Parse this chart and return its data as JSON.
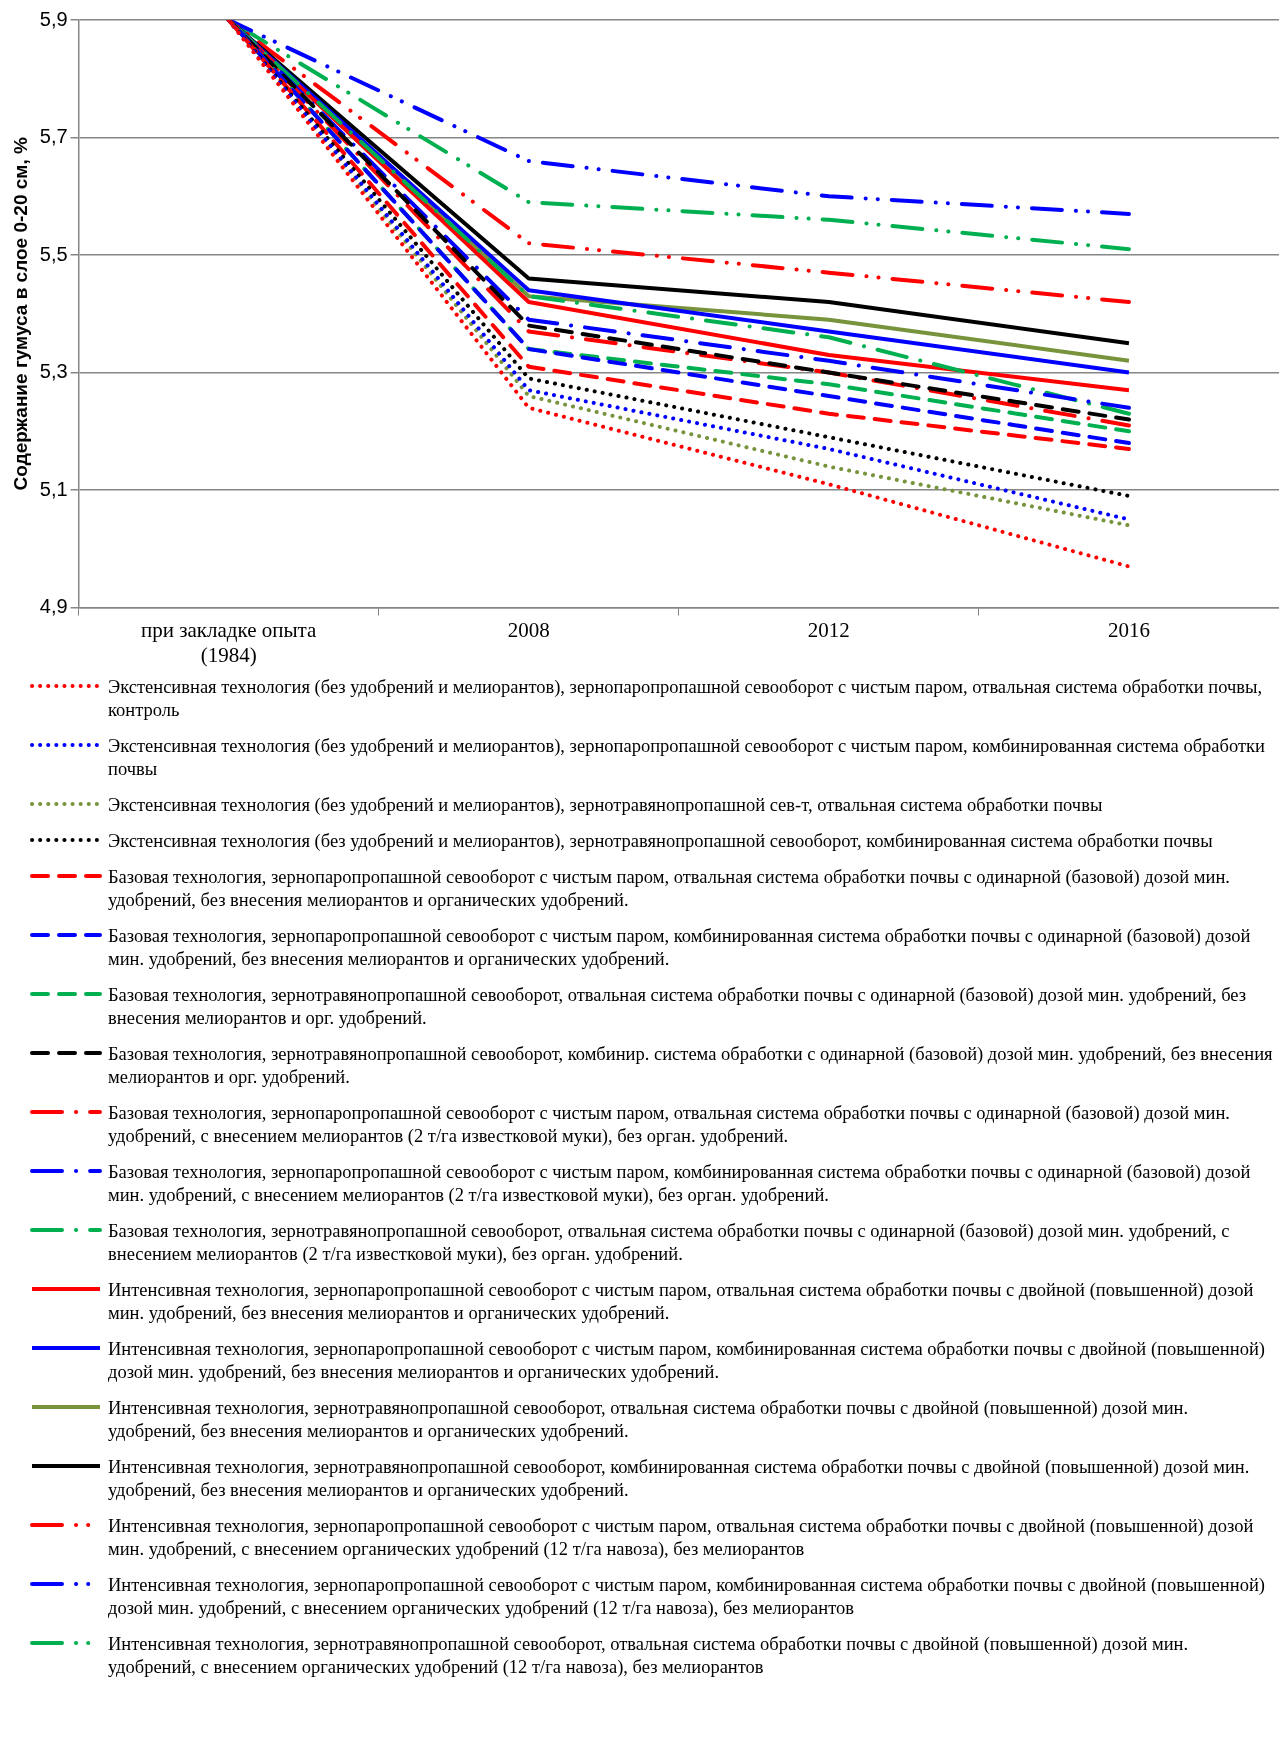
{
  "chart_data": {
    "type": "line",
    "ylabel": "Содержание гумуса в слое 0-20 см, %",
    "categories": [
      "при закладке опыта\n(1984)",
      "2008",
      "2012",
      "2016"
    ],
    "ylim": [
      4.9,
      5.9
    ],
    "yticks": [
      {
        "value": 4.9,
        "label": "4,9"
      },
      {
        "value": 5.1,
        "label": "5,1"
      },
      {
        "value": 5.3,
        "label": "5,3"
      },
      {
        "value": 5.5,
        "label": "5,5"
      },
      {
        "value": 5.7,
        "label": "5,7"
      },
      {
        "value": 5.9,
        "label": "5,9"
      }
    ],
    "grid": "y",
    "legend": "bottom",
    "marker": "none",
    "series": [
      {
        "name": "Экстенсивная технология (без удобрений и мелиорантов), зернопаропропашной севооборот с чистым паром, отвальная система обработки почвы, контроль",
        "color": "#ff0000",
        "line_style": "dotted",
        "values": [
          5.9,
          5.24,
          5.11,
          4.97
        ]
      },
      {
        "name": "Экстенсивная технология (без удобрений и мелиорантов), зернопаропропашной севооборот с чистым паром, комбинированная система обработки почвы",
        "color": "#0000ff",
        "line_style": "dotted",
        "values": [
          5.9,
          5.27,
          5.17,
          5.05
        ]
      },
      {
        "name": "Экстенсивная технология (без удобрений и мелиорантов), зернотравянопропашной сев-т, отвальная система обработки почвы",
        "color": "#77933c",
        "line_style": "dotted",
        "values": [
          5.9,
          5.26,
          5.14,
          5.04
        ]
      },
      {
        "name": "Экстенсивная технология (без удобрений и мелиорантов), зернотравянопропашной севооборот, комбинированная система обработки почвы",
        "color": "#000000",
        "line_style": "dotted",
        "values": [
          5.9,
          5.29,
          5.19,
          5.09
        ]
      },
      {
        "name": "Базовая технология, зернопаропропашной севооборот с чистым паром, отвальная система обработки почвы с одинарной (базовой) дозой мин. удобрений, без внесения мелиорантов и органических удобрений.",
        "color": "#ff0000",
        "line_style": "dashed",
        "values": [
          5.9,
          5.31,
          5.23,
          5.17
        ]
      },
      {
        "name": "Базовая технология, зернопаропропашной севооборот с чистым паром, комбинированная система обработки почвы с одинарной (базовой) дозой мин. удобрений, без внесения мелиорантов и органических удобрений.",
        "color": "#0000ff",
        "line_style": "dashed",
        "values": [
          5.9,
          5.34,
          5.26,
          5.18
        ]
      },
      {
        "name": "Базовая технология, зернотравянопропашной севооборот, отвальная система обработки почвы с одинарной (базовой) дозой мин. удобрений, без внесения мелиорантов и орг. удобрений.",
        "color": "#00b050",
        "line_style": "dashed",
        "values": [
          5.9,
          5.34,
          5.28,
          5.2
        ]
      },
      {
        "name": "Базовая технология, зернотравянопропашной севооборот, комбинир. система обработки с одинарной (базовой) дозой мин. удобрений, без внесения мелиорантов и орг. удобрений.",
        "color": "#000000",
        "line_style": "dashed",
        "values": [
          5.9,
          5.38,
          5.3,
          5.22
        ]
      },
      {
        "name": "Базовая технология, зернопаропропашной севооборот с чистым паром, отвальная система обработки почвы с одинарной (базовой) дозой мин. удобрений, с внесением мелиорантов (2 т/га известковой муки), без орган. удобрений.",
        "color": "#ff0000",
        "line_style": "dashdot",
        "values": [
          5.9,
          5.37,
          5.3,
          5.21
        ]
      },
      {
        "name": "Базовая технология, зернопаропропашной севооборот с чистым паром, комбинированная система обработки почвы с одинарной (базовой) дозой мин. удобрений, с внесением мелиорантов (2 т/га известковой муки), без орган. удобрений.",
        "color": "#0000ff",
        "line_style": "dashdot",
        "values": [
          5.9,
          5.39,
          5.32,
          5.24
        ]
      },
      {
        "name": "Базовая технология, зернотравянопропашной севооборот, отвальная система обработки почвы с одинарной (базовой) дозой мин. удобрений, с внесением мелиорантов (2 т/га известковой муки), без орган. удобрений.",
        "color": "#00b050",
        "line_style": "dashdot",
        "values": [
          5.9,
          5.43,
          5.36,
          5.23
        ]
      },
      {
        "name": "Интенсивная технология, зернопаропропашной севооборот с чистым паром, отвальная система обработки почвы с двойной (повышенной) дозой мин. удобрений,  без внесения мелиорантов и органических удобрений.",
        "color": "#ff0000",
        "line_style": "solid",
        "values": [
          5.9,
          5.42,
          5.33,
          5.27
        ]
      },
      {
        "name": "Интенсивная технология, зернопаропропашной севооборот с чистым паром, комбинированная система обработки почвы с двойной (повышенной) дозой мин. удобрений,  без внесения мелиорантов и органических удобрений.",
        "color": "#0000ff",
        "line_style": "solid",
        "values": [
          5.9,
          5.44,
          5.37,
          5.3
        ]
      },
      {
        "name": "Интенсивная технология, зернотравянопропашной севооборот, отвальная система обработки почвы с двойной (повышенной) дозой мин. удобрений,  без внесения мелиорантов и органических удобрений.",
        "color": "#77933c",
        "line_style": "solid",
        "values": [
          5.9,
          5.43,
          5.39,
          5.32
        ]
      },
      {
        "name": "Интенсивная технология, зернотравянопропашной севооборот, комбинированная система обработки почвы с двойной (повышенной) дозой мин. удобрений,  без внесения мелиорантов и органических удобрений.",
        "color": "#000000",
        "line_style": "solid",
        "values": [
          5.9,
          5.46,
          5.42,
          5.35
        ]
      },
      {
        "name": "Интенсивная технология, зернопаропропашной севооборот с чистым паром, отвальная система обработки почвы с двойной (повышенной) дозой мин. удобрений, с внесением органических удобрений (12 т/га навоза), без мелиорантов",
        "color": "#ff0000",
        "line_style": "dashdotdot",
        "values": [
          5.9,
          5.52,
          5.47,
          5.42
        ]
      },
      {
        "name": "Интенсивная технология, зернопаропропашной севооборот с чистым паром, комбинированная система обработки почвы с двойной (повышенной) дозой мин. удобрений, с внесением органических удобрений (12 т/га навоза), без мелиорантов",
        "color": "#0000ff",
        "line_style": "dashdotdot",
        "values": [
          5.9,
          5.66,
          5.6,
          5.57
        ]
      },
      {
        "name": "Интенсивная технология, зернотравянопропашной севооборот, отвальная система обработки почвы с двойной (повышенной) дозой мин. удобрений, с внесением органических удобрений (12 т/га навоза), без мелиорантов",
        "color": "#00b050",
        "line_style": "dashdotdot",
        "values": [
          5.9,
          5.59,
          5.56,
          5.51
        ]
      }
    ]
  }
}
